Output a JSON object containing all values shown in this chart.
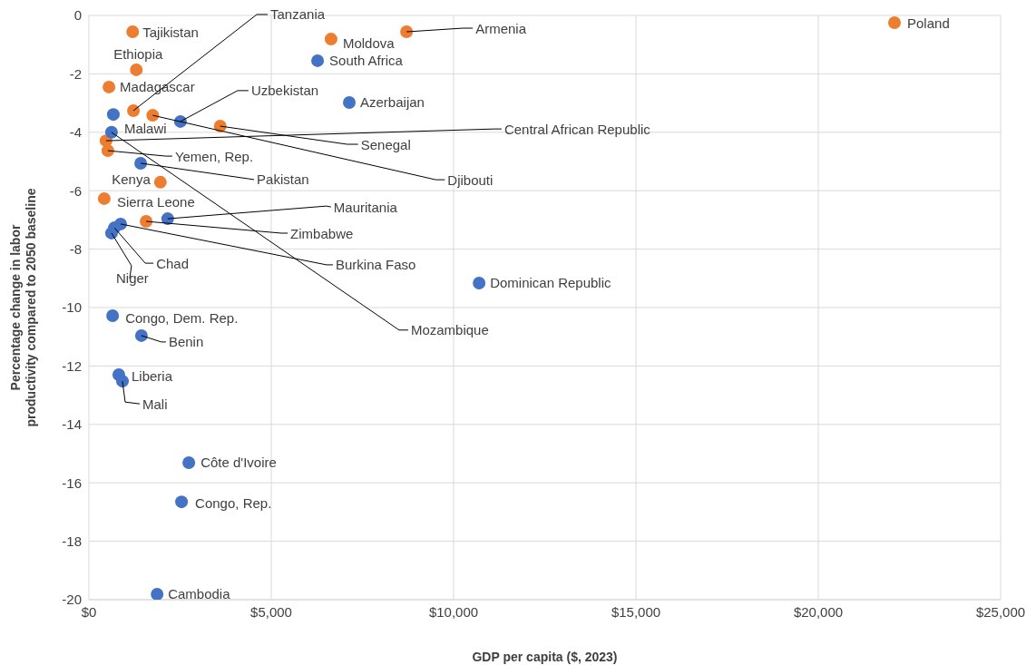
{
  "chart_data": {
    "type": "scatter",
    "xlabel": "GDP per capita ($, 2023)",
    "ylabel": "Percentage change in labor productivity compared to 2050 baseline",
    "xlim": [
      0,
      25000
    ],
    "xticks": [
      {
        "value": 0,
        "label": "$0"
      },
      {
        "value": 5000,
        "label": "$5,000"
      },
      {
        "value": 10000,
        "label": "$10,000"
      },
      {
        "value": 15000,
        "label": "$15,000"
      },
      {
        "value": 20000,
        "label": "$20,000"
      },
      {
        "value": 25000,
        "label": "$25,000"
      }
    ],
    "ylim": [
      -20,
      0
    ],
    "yticks": [
      -20,
      -18,
      -16,
      -14,
      -12,
      -10,
      -8,
      -6,
      -4,
      -2,
      0
    ],
    "grid": true,
    "marker": "circle",
    "series": [
      {
        "color": "#ed7d31",
        "x": [
          1200,
          1300,
          550,
          1220,
          1750,
          3600,
          470,
          520,
          1960,
          420,
          1570,
          6640,
          8710,
          22090
        ],
        "values": [
          -0.56,
          -1.86,
          -2.45,
          -3.26,
          -3.42,
          -3.79,
          -4.29,
          -4.63,
          -5.71,
          -6.27,
          -7.05,
          -0.81,
          -0.56,
          -0.25
        ]
      },
      {
        "color": "#4472c4",
        "x": [
          670,
          620,
          2510,
          1420,
          2160,
          870,
          700,
          620,
          6270,
          7140,
          10700,
          650,
          1440,
          820,
          920,
          2740,
          2540,
          1870
        ],
        "values": [
          -3.39,
          -4.0,
          -3.63,
          -5.06,
          -6.96,
          -7.14,
          -7.27,
          -7.45,
          -1.55,
          -2.98,
          -9.16,
          -10.28,
          -10.96,
          -12.3,
          -12.52,
          -15.31,
          -16.65,
          -19.81
        ]
      }
    ],
    "annotations": [
      {
        "text": "Tajikistan",
        "x": 1200,
        "y": -0.56
      },
      {
        "text": "Ethiopia",
        "x": 1300,
        "y": -1.86
      },
      {
        "text": "Madagascar",
        "x": 550,
        "y": -2.45
      },
      {
        "text": "Tanzania",
        "x": 1220,
        "y": -3.26
      },
      {
        "text": "Djibouti",
        "x": 1750,
        "y": -3.42
      },
      {
        "text": "Senegal",
        "x": 3600,
        "y": -3.79
      },
      {
        "text": "Central African Republic",
        "x": 470,
        "y": -4.29
      },
      {
        "text": "Yemen, Rep.",
        "x": 520,
        "y": -4.63
      },
      {
        "text": "Kenya",
        "x": 1960,
        "y": -5.71
      },
      {
        "text": "Sierra Leone",
        "x": 420,
        "y": -6.27
      },
      {
        "text": "Zimbabwe",
        "x": 1570,
        "y": -7.05
      },
      {
        "text": "Moldova",
        "x": 6640,
        "y": -0.81
      },
      {
        "text": "Armenia",
        "x": 8710,
        "y": -0.56
      },
      {
        "text": "Poland",
        "x": 22090,
        "y": -0.25
      },
      {
        "text": "Malawi",
        "x": 670,
        "y": -3.39
      },
      {
        "text": "Mozambique",
        "x": 620,
        "y": -4.0
      },
      {
        "text": "Uzbekistan",
        "x": 2510,
        "y": -3.63
      },
      {
        "text": "Pakistan",
        "x": 1420,
        "y": -5.06
      },
      {
        "text": "Mauritania",
        "x": 2160,
        "y": -6.96
      },
      {
        "text": "Burkina Faso",
        "x": 870,
        "y": -7.14
      },
      {
        "text": "Chad",
        "x": 700,
        "y": -7.27
      },
      {
        "text": "Niger",
        "x": 620,
        "y": -7.45
      },
      {
        "text": "South Africa",
        "x": 6270,
        "y": -1.55
      },
      {
        "text": "Azerbaijan",
        "x": 7140,
        "y": -2.98
      },
      {
        "text": "Dominican Republic",
        "x": 10700,
        "y": -9.16
      },
      {
        "text": "Congo, Dem. Rep.",
        "x": 650,
        "y": -10.28
      },
      {
        "text": "Benin",
        "x": 1440,
        "y": -10.96
      },
      {
        "text": "Liberia",
        "x": 820,
        "y": -12.3
      },
      {
        "text": "Mali",
        "x": 920,
        "y": -12.52
      },
      {
        "text": "Côte d'Ivoire",
        "x": 2740,
        "y": -15.31
      },
      {
        "text": "Congo, Rep.",
        "x": 2540,
        "y": -16.65
      },
      {
        "text": "Cambodia",
        "x": 1870,
        "y": -19.81
      }
    ]
  }
}
